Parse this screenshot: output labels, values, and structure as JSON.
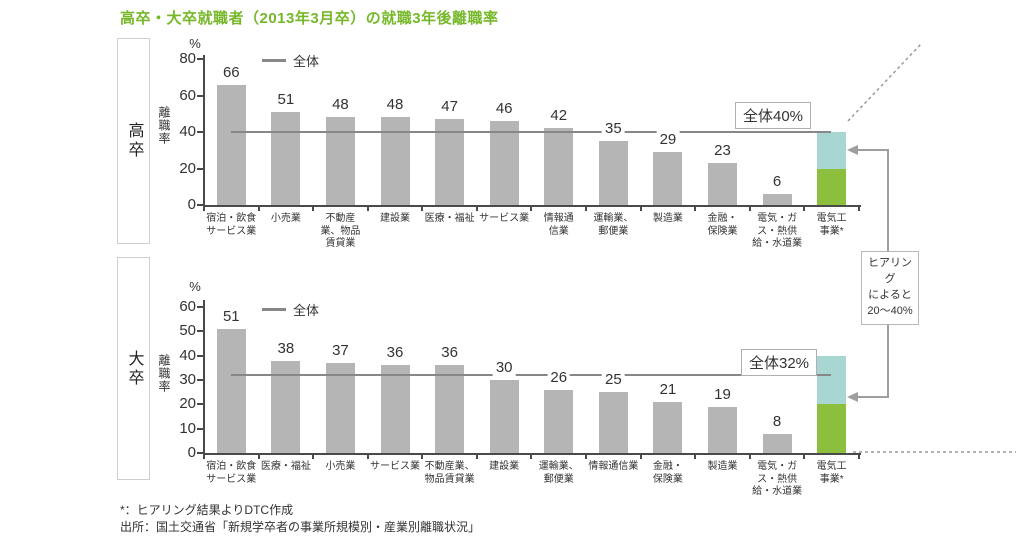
{
  "title": "高卒・大卒就職者（2013年3月卒）の就職3年後離職率",
  "colors": {
    "title_green": "#76b82a",
    "bar_gray": "#b5b5b5",
    "overall_line_gray": "#878787",
    "stack_lower_green": "#8bbf3d",
    "stack_upper_teal": "#a8d6d3",
    "arrow_gray": "#9e9e9e"
  },
  "annotation": {
    "text": "ヒアリング\nによると\n20〜40%"
  },
  "footnotes": {
    "note": "*：ヒアリング結果よりDTC作成",
    "source": "出所：国土交通省「新規学卒者の事業所規模別・産業別離職状況」"
  },
  "chart_data": [
    {
      "type": "bar",
      "group_label": "高卒",
      "unit": "%",
      "ylabel": "離職率",
      "ylim": [
        0,
        80
      ],
      "yticks": [
        0,
        20,
        40,
        60,
        80
      ],
      "legend": {
        "label": "全体"
      },
      "overall": {
        "value": 40,
        "label": "全体40%"
      },
      "categories": [
        "宿泊・飲食\nサービス業",
        "小売業",
        "不動産\n業、物品\n賃貸業",
        "建設業",
        "医療・福祉",
        "サービス業",
        "情報通\n信業",
        "運輸業、\n郵便業",
        "製造業",
        "金融・\n保険業",
        "電気・ガ\nス・熱供\n給・水道業",
        "電気工\n事業*"
      ],
      "values": [
        66,
        51,
        48,
        48,
        47,
        46,
        42,
        35,
        29,
        23,
        6,
        null
      ],
      "stacked_last": {
        "category": "電気工\n事業*",
        "segments": [
          {
            "name": "lower",
            "value": 20,
            "color": "#8bbf3d"
          },
          {
            "name": "upper",
            "value": 20,
            "color": "#a8d6d3"
          }
        ],
        "total": 40,
        "note": "ヒアリングによると20〜40%"
      }
    },
    {
      "type": "bar",
      "group_label": "大卒",
      "unit": "%",
      "ylabel": "離職率",
      "ylim": [
        0,
        60
      ],
      "yticks": [
        0,
        10,
        20,
        30,
        40,
        50,
        60
      ],
      "legend": {
        "label": "全体"
      },
      "overall": {
        "value": 32,
        "label": "全体32%"
      },
      "categories": [
        "宿泊・飲食\nサービス業",
        "医療・福祉",
        "小売業",
        "サービス業",
        "不動産業、\n物品賃貸業",
        "建設業",
        "運輸業、\n郵便業",
        "情報通信業",
        "金融・\n保険業",
        "製造業",
        "電気・ガ\nス・熱供\n給・水道業",
        "電気工\n事業*"
      ],
      "values": [
        51,
        38,
        37,
        36,
        36,
        30,
        26,
        25,
        21,
        19,
        8,
        null
      ],
      "stacked_last": {
        "category": "電気工\n事業*",
        "segments": [
          {
            "name": "lower",
            "value": 20,
            "color": "#8bbf3d"
          },
          {
            "name": "upper",
            "value": 20,
            "color": "#a8d6d3"
          }
        ],
        "total": 40,
        "note": "ヒアリングによると20〜40%"
      }
    }
  ]
}
